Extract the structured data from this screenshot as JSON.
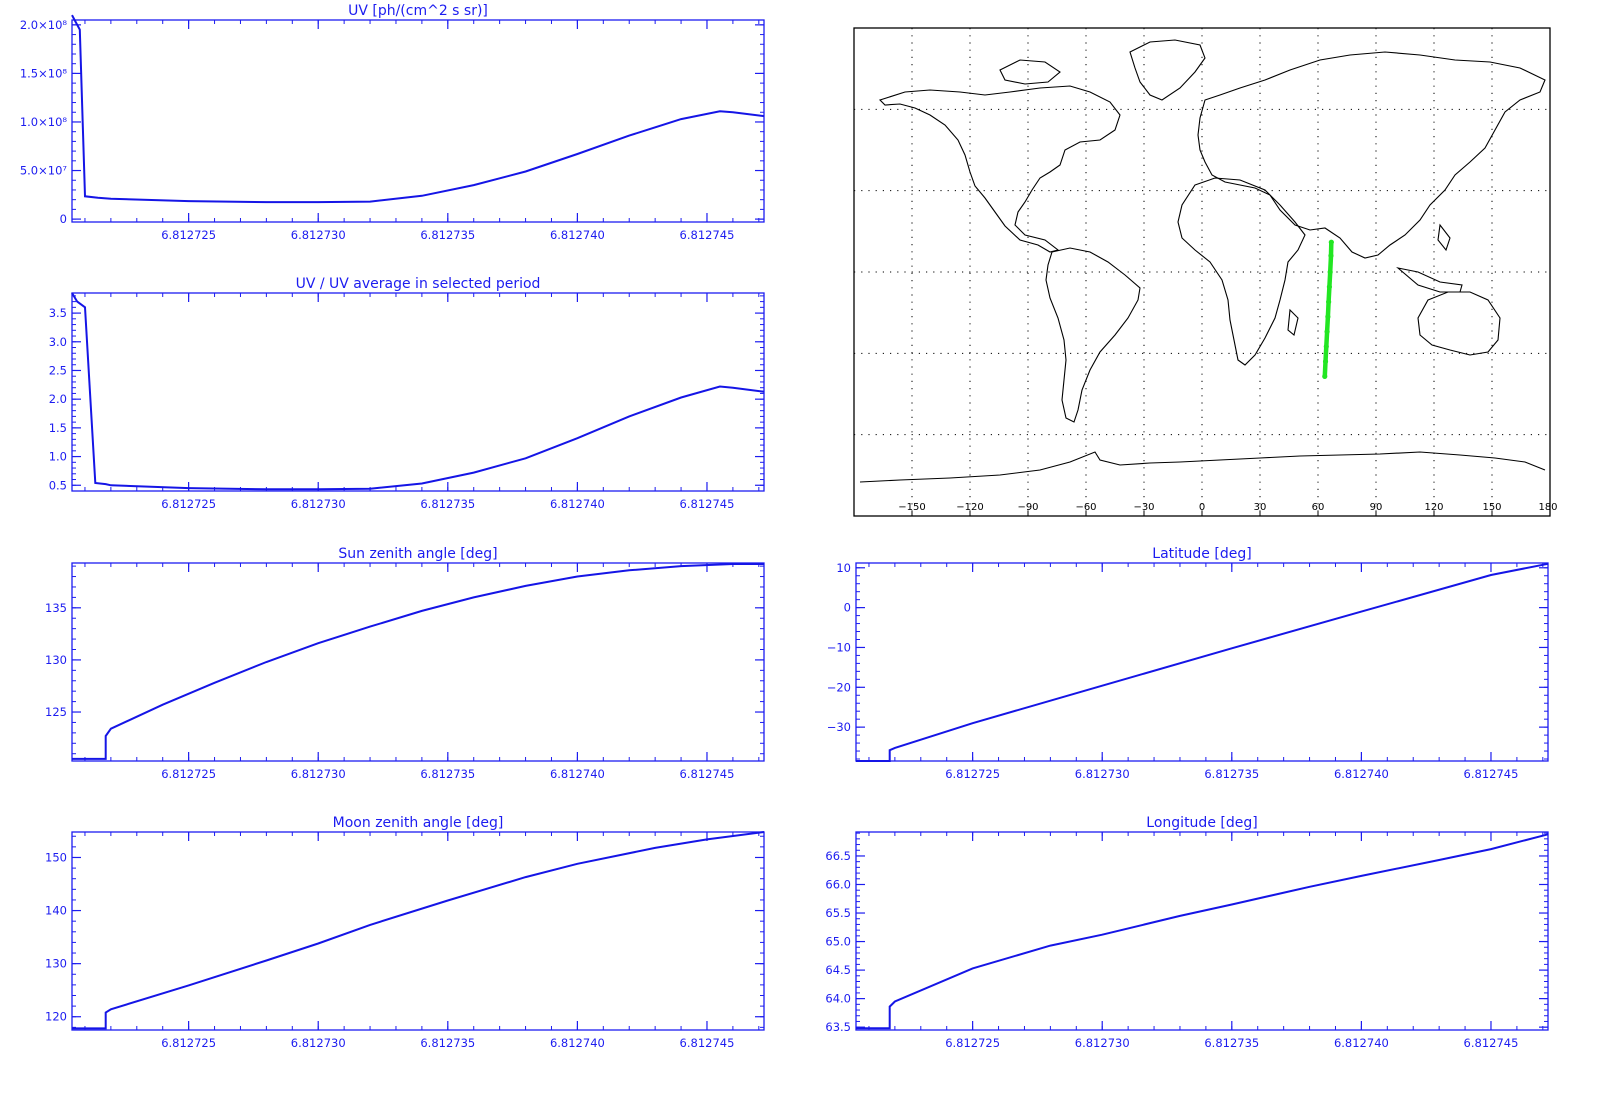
{
  "colors": {
    "axis": "#1c1cf0",
    "series": "#1515e6",
    "map_frame": "#000000",
    "coast": "#000000",
    "track": "#22e622",
    "grid": "#000000"
  },
  "chart_data": [
    {
      "id": "uv",
      "type": "line",
      "title": "UV [ph/(cm^2 s sr)]",
      "xlim": [
        6.8127205,
        6.8127472
      ],
      "ylim": [
        -3000000,
        205000000
      ],
      "xticks": [
        6.812725,
        6.81273,
        6.812735,
        6.81274,
        6.812745
      ],
      "xtick_labels": [
        "6.812725",
        "6.812730",
        "6.812735",
        "6.812740",
        "6.812745"
      ],
      "yticks": [
        0,
        50000000,
        100000000,
        150000000,
        200000000
      ],
      "ytick_labels": [
        "0",
        "5.0×10⁷",
        "1.0×10⁸",
        "1.5×10⁸",
        "2.0×10⁸"
      ],
      "x": [
        6.8127205,
        6.8127206,
        6.8127208,
        6.812721,
        6.8127215,
        6.812722,
        6.812725,
        6.812728,
        6.81273,
        6.812732,
        6.812734,
        6.812736,
        6.812738,
        6.81274,
        6.812742,
        6.812744,
        6.8127455,
        6.812746,
        6.8127472
      ],
      "y": [
        210000000,
        205000000,
        195000000,
        23500000,
        22000000,
        21000000,
        18500000,
        17500000,
        17500000,
        18000000,
        24000000,
        35000000,
        49000000,
        67000000,
        86000000,
        103000000,
        111000000,
        110000000,
        106000000
      ]
    },
    {
      "id": "uv_ratio",
      "type": "line",
      "title": "UV / UV average in selected period",
      "xlim": [
        6.8127205,
        6.8127472
      ],
      "ylim": [
        0.4,
        3.85
      ],
      "xticks": [
        6.812725,
        6.81273,
        6.812735,
        6.81274,
        6.812745
      ],
      "xtick_labels": [
        "6.812725",
        "6.812730",
        "6.812735",
        "6.812740",
        "6.812745"
      ],
      "yticks": [
        0.5,
        1.0,
        1.5,
        2.0,
        2.5,
        3.0,
        3.5
      ],
      "ytick_labels": [
        "0.5",
        "1.0",
        "1.5",
        "2.0",
        "2.5",
        "3.0",
        "3.5"
      ],
      "x": [
        6.8127205,
        6.8127207,
        6.812721,
        6.8127214,
        6.8127218,
        6.812722,
        6.812725,
        6.812728,
        6.81273,
        6.812732,
        6.812734,
        6.812736,
        6.812738,
        6.81274,
        6.812742,
        6.812744,
        6.8127455,
        6.812746,
        6.8127472
      ],
      "y": [
        3.85,
        3.7,
        3.6,
        0.54,
        0.52,
        0.5,
        0.45,
        0.43,
        0.43,
        0.44,
        0.53,
        0.72,
        0.97,
        1.32,
        1.7,
        2.03,
        2.22,
        2.2,
        2.13
      ]
    },
    {
      "id": "sun_zenith",
      "type": "line",
      "title": "Sun zenith angle [deg]",
      "xlim": [
        6.8127205,
        6.8127472
      ],
      "ylim": [
        120.3,
        139.3
      ],
      "xticks": [
        6.812725,
        6.81273,
        6.812735,
        6.81274,
        6.812745
      ],
      "xtick_labels": [
        "6.812725",
        "6.812730",
        "6.812735",
        "6.812740",
        "6.812745"
      ],
      "yticks": [
        125,
        130,
        135
      ],
      "ytick_labels": [
        "125",
        "130",
        "135"
      ],
      "x": [
        6.8127205,
        6.8127218,
        6.8127218,
        6.812722,
        6.812724,
        6.812726,
        6.812728,
        6.81273,
        6.812732,
        6.812734,
        6.812736,
        6.812738,
        6.81274,
        6.812742,
        6.812744,
        6.812746,
        6.8127472
      ],
      "y": [
        120.5,
        120.5,
        122.7,
        123.4,
        125.7,
        127.8,
        129.8,
        131.6,
        133.2,
        134.7,
        136.0,
        137.1,
        138.0,
        138.6,
        139.0,
        139.2,
        139.2
      ]
    },
    {
      "id": "moon_zenith",
      "type": "line",
      "title": "Moon zenith angle [deg]",
      "xlim": [
        6.8127205,
        6.8127472
      ],
      "ylim": [
        117.5,
        154.8
      ],
      "xticks": [
        6.812725,
        6.81273,
        6.812735,
        6.81274,
        6.812745
      ],
      "xtick_labels": [
        "6.812725",
        "6.812730",
        "6.812735",
        "6.812740",
        "6.812745"
      ],
      "yticks": [
        120,
        130,
        140,
        150
      ],
      "ytick_labels": [
        "120",
        "130",
        "140",
        "150"
      ],
      "x": [
        6.8127205,
        6.8127218,
        6.8127218,
        6.812722,
        6.812725,
        6.812728,
        6.81273,
        6.812732,
        6.812735,
        6.812738,
        6.81274,
        6.812743,
        6.812745,
        6.8127472
      ],
      "y": [
        117.8,
        117.8,
        120.8,
        121.4,
        125.9,
        130.6,
        133.8,
        137.3,
        141.9,
        146.3,
        148.8,
        151.8,
        153.4,
        154.8
      ]
    },
    {
      "id": "latitude",
      "type": "line",
      "title": "Latitude [deg]",
      "xlim": [
        6.8127205,
        6.8127472
      ],
      "ylim": [
        -38.5,
        11.2
      ],
      "xticks": [
        6.812725,
        6.81273,
        6.812735,
        6.81274,
        6.812745
      ],
      "xtick_labels": [
        "6.812725",
        "6.812730",
        "6.812735",
        "6.812740",
        "6.812745"
      ],
      "yticks": [
        -30,
        -20,
        -10,
        0,
        10
      ],
      "ytick_labels": [
        "−30",
        "−20",
        "−10",
        "0",
        "10"
      ],
      "x": [
        6.8127205,
        6.8127218,
        6.8127218,
        6.812722,
        6.812725,
        6.81273,
        6.812735,
        6.81274,
        6.812745,
        6.8127472
      ],
      "y": [
        -38.5,
        -38.5,
        -35.8,
        -35.2,
        -29.0,
        -19.6,
        -10.2,
        -1.0,
        8.2,
        11.0
      ]
    },
    {
      "id": "longitude",
      "type": "line",
      "title": "Longitude [deg]",
      "xlim": [
        6.8127205,
        6.8127472
      ],
      "ylim": [
        63.45,
        66.92
      ],
      "xticks": [
        6.812725,
        6.81273,
        6.812735,
        6.81274,
        6.812745
      ],
      "xtick_labels": [
        "6.812725",
        "6.812730",
        "6.812735",
        "6.812740",
        "6.812745"
      ],
      "yticks": [
        63.5,
        64.0,
        64.5,
        65.0,
        65.5,
        66.0,
        66.5
      ],
      "ytick_labels": [
        "63.5",
        "64.0",
        "64.5",
        "65.0",
        "65.5",
        "66.0",
        "66.5"
      ],
      "x": [
        6.8127205,
        6.8127218,
        6.8127218,
        6.812722,
        6.812725,
        6.812728,
        6.81273,
        6.812733,
        6.812735,
        6.812738,
        6.81274,
        6.812743,
        6.812745,
        6.8127472
      ],
      "y": [
        63.48,
        63.48,
        63.86,
        63.95,
        64.53,
        64.93,
        65.12,
        65.45,
        65.65,
        65.96,
        66.15,
        66.43,
        66.62,
        66.88
      ]
    },
    {
      "id": "map",
      "type": "scatter",
      "xlim": [
        -180,
        180
      ],
      "ylim": [
        -90,
        90
      ],
      "xticks": [
        -150,
        -120,
        -90,
        -60,
        -30,
        0,
        30,
        60,
        90,
        120,
        150,
        180
      ],
      "xtick_labels": [
        "−150",
        "−120",
        "−90",
        "−60",
        "−30",
        "0",
        "30",
        "60",
        "90",
        "120",
        "150",
        "180"
      ],
      "grid_lon": [
        -150,
        -120,
        -90,
        -60,
        -30,
        0,
        30,
        60,
        90,
        120,
        150
      ],
      "grid_lat": [
        -60,
        -30,
        0,
        30,
        60
      ],
      "track": {
        "lon": [
          63.5,
          63.9,
          64.3,
          64.7,
          65.1,
          65.5,
          65.9,
          66.3,
          66.7,
          66.9
        ],
        "lat": [
          -38.5,
          -33.0,
          -27.5,
          -22.0,
          -16.5,
          -11.0,
          -5.5,
          0.0,
          6.0,
          11.0
        ]
      }
    }
  ]
}
